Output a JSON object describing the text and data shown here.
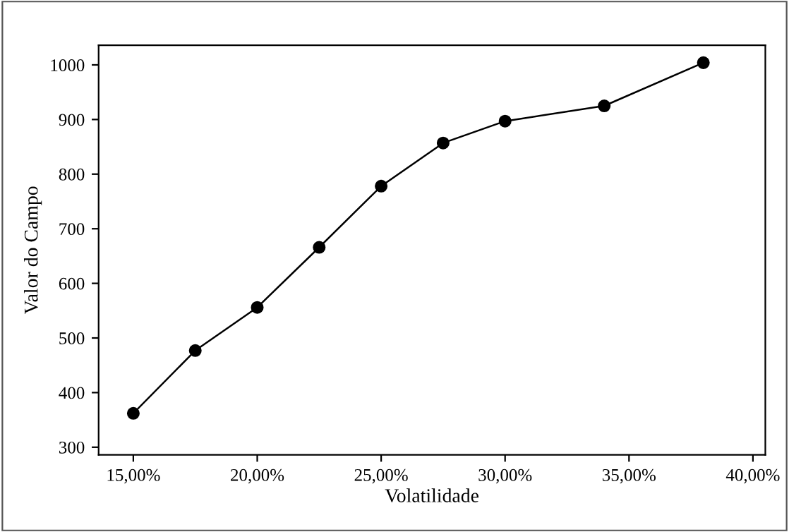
{
  "chart_data": {
    "type": "line",
    "xlabel": "Volatilidade",
    "ylabel": "Valor do Campo",
    "x": [
      15,
      17.5,
      20,
      22.5,
      25,
      27.5,
      30,
      34,
      38
    ],
    "series": [
      {
        "color": "#000000",
        "values": [
          362,
          477,
          556,
          666,
          778,
          857,
          897,
          925,
          1004
        ]
      }
    ],
    "marker": "circle",
    "line_style": "solid",
    "grid": false,
    "legend": false,
    "xlim": [
      13.6,
      40.5
    ],
    "ylim": [
      286,
      1036
    ],
    "xticks": [
      {
        "value": 15,
        "label": "15,00%"
      },
      {
        "value": 20,
        "label": "20,00%"
      },
      {
        "value": 25,
        "label": "25,00%"
      },
      {
        "value": 30,
        "label": "30,00%"
      },
      {
        "value": 35,
        "label": "35,00%"
      },
      {
        "value": 40,
        "label": "40,00%"
      }
    ],
    "yticks": [
      300,
      400,
      500,
      600,
      700,
      800,
      900,
      1000
    ]
  }
}
